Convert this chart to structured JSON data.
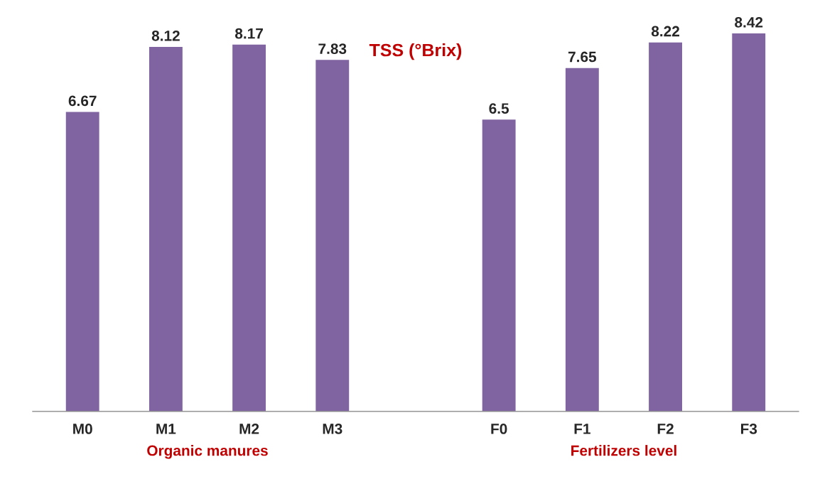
{
  "chart_data": {
    "type": "bar",
    "title": "TSS (°Brix)",
    "categories": [
      "M0",
      "M1",
      "M2",
      "M3",
      null,
      "F0",
      "F1",
      "F2",
      "F3"
    ],
    "values": [
      6.67,
      8.12,
      8.17,
      7.83,
      null,
      6.5,
      7.65,
      8.22,
      8.42
    ],
    "color": "#8064a2",
    "data_labels": true,
    "annotations": [
      "Organic manures",
      "Fertilizers level"
    ]
  }
}
